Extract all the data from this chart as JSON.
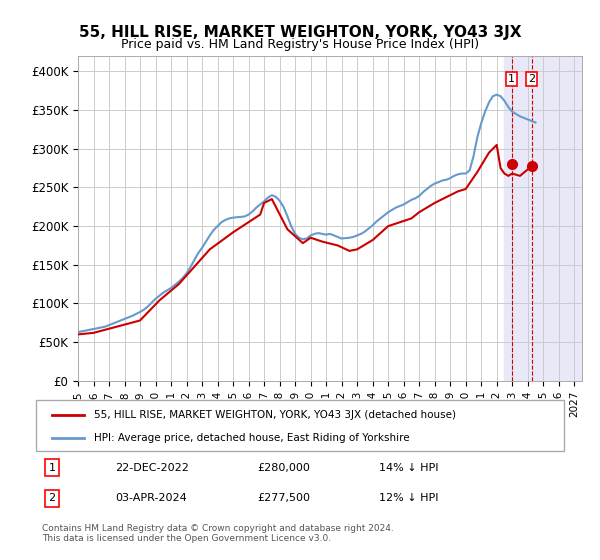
{
  "title": "55, HILL RISE, MARKET WEIGHTON, YORK, YO43 3JX",
  "subtitle": "Price paid vs. HM Land Registry's House Price Index (HPI)",
  "ylabel_ticks": [
    "£0",
    "£50K",
    "£100K",
    "£150K",
    "£200K",
    "£250K",
    "£300K",
    "£350K",
    "£400K"
  ],
  "ytick_values": [
    0,
    50000,
    100000,
    150000,
    200000,
    250000,
    300000,
    350000,
    400000
  ],
  "ylim": [
    0,
    420000
  ],
  "xlim_start": 1995.0,
  "xlim_end": 2027.5,
  "bg_color": "#ffffff",
  "grid_color": "#cccccc",
  "hpi_color": "#6699cc",
  "price_color": "#cc0000",
  "legend_label_price": "55, HILL RISE, MARKET WEIGHTON, YORK, YO43 3JX (detached house)",
  "legend_label_hpi": "HPI: Average price, detached house, East Riding of Yorkshire",
  "annotation1_label": "1",
  "annotation1_date": "22-DEC-2022",
  "annotation1_price": "£280,000",
  "annotation1_pct": "14% ↓ HPI",
  "annotation2_label": "2",
  "annotation2_date": "03-APR-2024",
  "annotation2_price": "£277,500",
  "annotation2_pct": "12% ↓ HPI",
  "footer": "Contains HM Land Registry data © Crown copyright and database right 2024.\nThis data is licensed under the Open Government Licence v3.0.",
  "hpi_x": [
    1995.0,
    1995.25,
    1995.5,
    1995.75,
    1996.0,
    1996.25,
    1996.5,
    1996.75,
    1997.0,
    1997.25,
    1997.5,
    1997.75,
    1998.0,
    1998.25,
    1998.5,
    1998.75,
    1999.0,
    1999.25,
    1999.5,
    1999.75,
    2000.0,
    2000.25,
    2000.5,
    2000.75,
    2001.0,
    2001.25,
    2001.5,
    2001.75,
    2002.0,
    2002.25,
    2002.5,
    2002.75,
    2003.0,
    2003.25,
    2003.5,
    2003.75,
    2004.0,
    2004.25,
    2004.5,
    2004.75,
    2005.0,
    2005.25,
    2005.5,
    2005.75,
    2006.0,
    2006.25,
    2006.5,
    2006.75,
    2007.0,
    2007.25,
    2007.5,
    2007.75,
    2008.0,
    2008.25,
    2008.5,
    2008.75,
    2009.0,
    2009.25,
    2009.5,
    2009.75,
    2010.0,
    2010.25,
    2010.5,
    2010.75,
    2011.0,
    2011.25,
    2011.5,
    2011.75,
    2012.0,
    2012.25,
    2012.5,
    2012.75,
    2013.0,
    2013.25,
    2013.5,
    2013.75,
    2014.0,
    2014.25,
    2014.5,
    2014.75,
    2015.0,
    2015.25,
    2015.5,
    2015.75,
    2016.0,
    2016.25,
    2016.5,
    2016.75,
    2017.0,
    2017.25,
    2017.5,
    2017.75,
    2018.0,
    2018.25,
    2018.5,
    2018.75,
    2019.0,
    2019.25,
    2019.5,
    2019.75,
    2020.0,
    2020.25,
    2020.5,
    2020.75,
    2021.0,
    2021.25,
    2021.5,
    2021.75,
    2022.0,
    2022.25,
    2022.5,
    2022.75,
    2023.0,
    2023.25,
    2023.5,
    2023.75,
    2024.0,
    2024.25,
    2024.5
  ],
  "hpi_y": [
    63000,
    64000,
    65000,
    66000,
    67000,
    68000,
    69000,
    70000,
    72000,
    74000,
    76000,
    78000,
    80000,
    82000,
    84000,
    86500,
    89000,
    92000,
    96000,
    101000,
    106000,
    110000,
    114000,
    117000,
    120000,
    124000,
    128000,
    133000,
    139000,
    147000,
    156000,
    165000,
    172000,
    180000,
    188000,
    195000,
    200000,
    205000,
    208000,
    210000,
    211000,
    211500,
    212000,
    212500,
    215000,
    219000,
    224000,
    228000,
    232000,
    237000,
    240000,
    238000,
    233000,
    225000,
    213000,
    200000,
    190000,
    185000,
    183000,
    184000,
    188000,
    190000,
    191000,
    190000,
    189000,
    190000,
    188000,
    186000,
    184000,
    184500,
    185000,
    186000,
    188000,
    190000,
    193000,
    197000,
    201000,
    206000,
    210000,
    214000,
    218000,
    221000,
    224000,
    226000,
    228000,
    231000,
    234000,
    236000,
    239000,
    244000,
    248000,
    252000,
    255000,
    257000,
    259000,
    260000,
    262000,
    265000,
    267000,
    268000,
    268000,
    272000,
    290000,
    315000,
    333000,
    348000,
    360000,
    368000,
    370000,
    368000,
    362000,
    354000,
    348000,
    345000,
    342000,
    340000,
    338000,
    336000,
    334000
  ],
  "price_x": [
    1995.0,
    1996.0,
    1999.0,
    2000.25,
    2001.5,
    2003.5,
    2005.0,
    2006.75,
    2007.0,
    2007.5,
    2008.5,
    2009.5,
    2010.0,
    2010.75,
    2011.75,
    2012.5,
    2013.0,
    2014.0,
    2015.0,
    2016.5,
    2017.0,
    2017.5,
    2018.0,
    2019.0,
    2019.5,
    2020.0,
    2020.75,
    2021.5,
    2022.0,
    2022.25,
    2022.5,
    2022.75,
    2023.0,
    2023.5,
    2024.25
  ],
  "price_y": [
    60000,
    62000,
    78000,
    104000,
    125000,
    170000,
    192000,
    215000,
    230000,
    235000,
    196000,
    178000,
    185000,
    180000,
    175000,
    168000,
    170000,
    182000,
    200000,
    210000,
    218000,
    224000,
    230000,
    240000,
    245000,
    248000,
    270000,
    295000,
    305000,
    275000,
    268000,
    265000,
    268000,
    265000,
    277500
  ],
  "sale_points_x": [
    2022.97,
    2024.25
  ],
  "sale_points_y": [
    280000,
    277500
  ],
  "sale_labels": [
    "1",
    "2"
  ],
  "shaded_region_start": 2022.5,
  "shaded_region_end": 2027.5,
  "shaded_color": "#e8e8f8"
}
